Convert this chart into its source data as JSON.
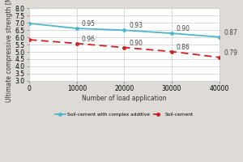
{
  "x": [
    0,
    10000,
    20000,
    30000,
    40000
  ],
  "y_complex": [
    6.97,
    6.62,
    6.5,
    6.28,
    6.03
  ],
  "y_cement": [
    5.84,
    5.58,
    5.3,
    5.02,
    4.62
  ],
  "labels_complex": [
    "",
    "0.95",
    "0.93",
    "0.90",
    "0.87"
  ],
  "labels_cement": [
    "",
    "0.96",
    "0.90",
    "0.86",
    "0.79"
  ],
  "color_complex": "#4db8cc",
  "color_cement": "#cc2222",
  "plot_bg": "#ffffff",
  "fig_bg": "#dedad5",
  "xlabel": "Number of load application",
  "ylabel": "Ultimate compressive strength [MPa]",
  "legend_complex": "Soil-cement with complex additive",
  "legend_cement": "Soil-cement",
  "ylim": [
    3.0,
    8.0
  ],
  "xlim": [
    0,
    40000
  ],
  "yticks": [
    3.0,
    3.5,
    4.0,
    4.5,
    5.0,
    5.5,
    6.0,
    6.5,
    7.0,
    7.5,
    8.0
  ],
  "xticks": [
    0,
    10000,
    20000,
    30000,
    40000
  ],
  "label_fontsize": 5.5,
  "tick_fontsize": 5.5,
  "annot_fontsize": 5.5
}
